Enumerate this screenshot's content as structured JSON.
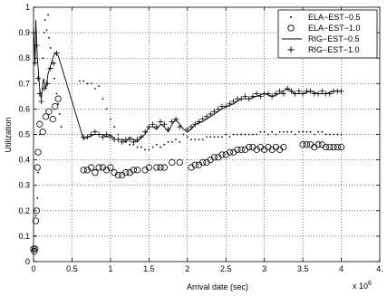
{
  "chart_data": {
    "type": "scatter",
    "xlabel": "Arrival date (sec)",
    "ylabel": "Utilization",
    "x_exponent_label": "x 10",
    "x_exponent_power": "6",
    "xlim": [
      0,
      4.5
    ],
    "ylim": [
      0,
      1
    ],
    "grid": true,
    "legend_position": "top-right",
    "x_ticks": [
      {
        "v": 0,
        "label": "0"
      },
      {
        "v": 0.5,
        "label": "0.5"
      },
      {
        "v": 1,
        "label": "1"
      },
      {
        "v": 1.5,
        "label": "1.5"
      },
      {
        "v": 2,
        "label": "2"
      },
      {
        "v": 2.5,
        "label": "2.5"
      },
      {
        "v": 3,
        "label": "3"
      },
      {
        "v": 3.5,
        "label": "3.5"
      },
      {
        "v": 4,
        "label": "4"
      },
      {
        "v": 4.5,
        "label": "4."
      }
    ],
    "y_ticks": [
      {
        "v": 0,
        "label": "0"
      },
      {
        "v": 0.1,
        "label": "0.1"
      },
      {
        "v": 0.2,
        "label": "0.2"
      },
      {
        "v": 0.3,
        "label": "0.3"
      },
      {
        "v": 0.4,
        "label": "0.4"
      },
      {
        "v": 0.5,
        "label": "0.5"
      },
      {
        "v": 0.6,
        "label": "0.6"
      },
      {
        "v": 0.7,
        "label": "0.7"
      },
      {
        "v": 0.8,
        "label": "0.8"
      },
      {
        "v": 0.9,
        "label": "0.9"
      },
      {
        "v": 1,
        "label": "1"
      }
    ],
    "series": [
      {
        "name": "ELA−EST−0.5",
        "marker": "dot",
        "points": [
          [
            0.01,
            0.05
          ],
          [
            0.02,
            0.1
          ],
          [
            0.03,
            0.18
          ],
          [
            0.05,
            0.25
          ],
          [
            0.06,
            0.35
          ],
          [
            0.08,
            0.5
          ],
          [
            0.1,
            0.65
          ],
          [
            0.12,
            0.8
          ],
          [
            0.14,
            0.9
          ],
          [
            0.15,
            0.95
          ],
          [
            0.17,
            0.91
          ],
          [
            0.19,
            0.97
          ],
          [
            0.2,
            0.88
          ],
          [
            0.22,
            0.84
          ],
          [
            0.25,
            0.78
          ],
          [
            0.27,
            0.72
          ],
          [
            0.3,
            0.66
          ],
          [
            0.32,
            0.62
          ],
          [
            0.34,
            0.58
          ],
          [
            0.36,
            0.53
          ],
          [
            0.6,
            0.71
          ],
          [
            0.65,
            0.71
          ],
          [
            0.7,
            0.7
          ],
          [
            0.75,
            0.7
          ],
          [
            0.8,
            0.68
          ],
          [
            0.85,
            0.69
          ],
          [
            0.9,
            0.64
          ],
          [
            0.95,
            0.6
          ],
          [
            1.0,
            0.56
          ],
          [
            1.05,
            0.53
          ],
          [
            1.1,
            0.5
          ],
          [
            1.15,
            0.48
          ],
          [
            1.2,
            0.47
          ],
          [
            1.25,
            0.46
          ],
          [
            1.3,
            0.46
          ],
          [
            1.35,
            0.45
          ],
          [
            1.4,
            0.45
          ],
          [
            1.45,
            0.44
          ],
          [
            1.5,
            0.44
          ],
          [
            1.55,
            0.45
          ],
          [
            1.6,
            0.46
          ],
          [
            1.65,
            0.45
          ],
          [
            1.7,
            0.46
          ],
          [
            1.75,
            0.47
          ],
          [
            1.8,
            0.47
          ],
          [
            1.85,
            0.48
          ],
          [
            1.9,
            0.47
          ],
          [
            1.95,
            0.5
          ],
          [
            2.0,
            0.49
          ],
          [
            2.05,
            0.48
          ],
          [
            2.1,
            0.48
          ],
          [
            2.15,
            0.48
          ],
          [
            2.2,
            0.48
          ],
          [
            2.25,
            0.49
          ],
          [
            2.3,
            0.49
          ],
          [
            2.35,
            0.49
          ],
          [
            2.4,
            0.49
          ],
          [
            2.45,
            0.49
          ],
          [
            2.5,
            0.5
          ],
          [
            2.55,
            0.49
          ],
          [
            2.6,
            0.5
          ],
          [
            2.65,
            0.5
          ],
          [
            2.7,
            0.5
          ],
          [
            2.75,
            0.5
          ],
          [
            2.8,
            0.5
          ],
          [
            2.85,
            0.5
          ],
          [
            2.9,
            0.5
          ],
          [
            2.95,
            0.51
          ],
          [
            3.0,
            0.51
          ],
          [
            3.05,
            0.5
          ],
          [
            3.1,
            0.51
          ],
          [
            3.15,
            0.5
          ],
          [
            3.2,
            0.51
          ],
          [
            3.25,
            0.51
          ],
          [
            3.3,
            0.51
          ],
          [
            3.35,
            0.51
          ],
          [
            3.4,
            0.5
          ],
          [
            3.45,
            0.51
          ],
          [
            3.5,
            0.51
          ],
          [
            3.55,
            0.51
          ],
          [
            3.6,
            0.51
          ],
          [
            3.65,
            0.5
          ],
          [
            3.7,
            0.51
          ],
          [
            3.75,
            0.51
          ],
          [
            3.8,
            0.5
          ],
          [
            3.85,
            0.5
          ],
          [
            3.9,
            0.5
          ],
          [
            3.95,
            0.5
          ],
          [
            4.0,
            0.5
          ]
        ]
      },
      {
        "name": "ELA−EST−1.0",
        "marker": "circle",
        "points": [
          [
            0.0,
            0.05
          ],
          [
            0.01,
            0.04
          ],
          [
            0.02,
            0.05
          ],
          [
            0.03,
            0.16
          ],
          [
            0.04,
            0.2
          ],
          [
            0.05,
            0.37
          ],
          [
            0.06,
            0.43
          ],
          [
            0.08,
            0.54
          ],
          [
            0.12,
            0.51
          ],
          [
            0.16,
            0.57
          ],
          [
            0.2,
            0.59
          ],
          [
            0.25,
            0.56
          ],
          [
            0.28,
            0.61
          ],
          [
            0.32,
            0.64
          ],
          [
            0.65,
            0.36
          ],
          [
            0.7,
            0.36
          ],
          [
            0.75,
            0.37
          ],
          [
            0.8,
            0.35
          ],
          [
            0.85,
            0.37
          ],
          [
            0.9,
            0.37
          ],
          [
            0.95,
            0.36
          ],
          [
            1.0,
            0.37
          ],
          [
            1.05,
            0.35
          ],
          [
            1.1,
            0.34
          ],
          [
            1.15,
            0.34
          ],
          [
            1.2,
            0.35
          ],
          [
            1.25,
            0.35
          ],
          [
            1.3,
            0.36
          ],
          [
            1.35,
            0.36
          ],
          [
            1.45,
            0.36
          ],
          [
            1.5,
            0.37
          ],
          [
            1.6,
            0.37
          ],
          [
            1.65,
            0.37
          ],
          [
            1.7,
            0.37
          ],
          [
            1.8,
            0.39
          ],
          [
            1.9,
            0.39
          ],
          [
            2.05,
            0.37
          ],
          [
            2.1,
            0.38
          ],
          [
            2.15,
            0.38
          ],
          [
            2.2,
            0.39
          ],
          [
            2.25,
            0.39
          ],
          [
            2.3,
            0.4
          ],
          [
            2.35,
            0.41
          ],
          [
            2.4,
            0.41
          ],
          [
            2.45,
            0.42
          ],
          [
            2.5,
            0.42
          ],
          [
            2.55,
            0.43
          ],
          [
            2.6,
            0.43
          ],
          [
            2.65,
            0.44
          ],
          [
            2.7,
            0.44
          ],
          [
            2.75,
            0.44
          ],
          [
            2.8,
            0.45
          ],
          [
            2.85,
            0.45
          ],
          [
            2.9,
            0.44
          ],
          [
            2.95,
            0.45
          ],
          [
            3.0,
            0.44
          ],
          [
            3.05,
            0.45
          ],
          [
            3.1,
            0.44
          ],
          [
            3.15,
            0.45
          ],
          [
            3.2,
            0.44
          ],
          [
            3.25,
            0.45
          ],
          [
            3.5,
            0.46
          ],
          [
            3.55,
            0.46
          ],
          [
            3.6,
            0.46
          ],
          [
            3.65,
            0.45
          ],
          [
            3.7,
            0.46
          ],
          [
            3.75,
            0.46
          ],
          [
            3.8,
            0.45
          ],
          [
            3.85,
            0.45
          ],
          [
            3.9,
            0.45
          ],
          [
            3.95,
            0.45
          ],
          [
            4.0,
            0.45
          ]
        ]
      },
      {
        "name": "RIG−EST−0.5",
        "marker": "line",
        "points": [
          [
            0.0,
            0.92
          ],
          [
            0.02,
            0.78
          ],
          [
            0.03,
            0.95
          ],
          [
            0.05,
            0.8
          ],
          [
            0.06,
            0.76
          ],
          [
            0.08,
            0.68
          ],
          [
            0.1,
            0.64
          ],
          [
            0.13,
            0.72
          ],
          [
            0.16,
            0.68
          ],
          [
            0.19,
            0.74
          ],
          [
            0.22,
            0.77
          ],
          [
            0.25,
            0.8
          ],
          [
            0.28,
            0.82
          ],
          [
            0.32,
            0.81
          ],
          [
            0.65,
            0.48
          ],
          [
            0.7,
            0.49
          ],
          [
            0.8,
            0.5
          ],
          [
            0.9,
            0.5
          ],
          [
            0.95,
            0.49
          ],
          [
            1.0,
            0.5
          ],
          [
            1.05,
            0.48
          ],
          [
            1.1,
            0.48
          ],
          [
            1.15,
            0.48
          ],
          [
            1.2,
            0.47
          ],
          [
            1.25,
            0.49
          ],
          [
            1.3,
            0.48
          ],
          [
            1.35,
            0.47
          ],
          [
            1.4,
            0.49
          ],
          [
            1.45,
            0.5
          ],
          [
            1.5,
            0.53
          ],
          [
            1.55,
            0.53
          ],
          [
            1.6,
            0.52
          ],
          [
            1.65,
            0.54
          ],
          [
            1.7,
            0.53
          ],
          [
            1.75,
            0.51
          ],
          [
            1.8,
            0.54
          ],
          [
            1.85,
            0.56
          ],
          [
            1.9,
            0.54
          ],
          [
            1.95,
            0.52
          ],
          [
            2.0,
            0.51
          ],
          [
            2.05,
            0.52
          ],
          [
            2.1,
            0.54
          ],
          [
            2.2,
            0.55
          ],
          [
            2.3,
            0.57
          ],
          [
            2.4,
            0.59
          ],
          [
            2.5,
            0.61
          ],
          [
            2.6,
            0.62
          ],
          [
            2.7,
            0.64
          ],
          [
            2.8,
            0.64
          ],
          [
            2.9,
            0.65
          ],
          [
            3.0,
            0.66
          ],
          [
            3.1,
            0.65
          ],
          [
            3.2,
            0.66
          ],
          [
            3.3,
            0.68
          ],
          [
            3.4,
            0.66
          ],
          [
            3.5,
            0.66
          ],
          [
            3.6,
            0.67
          ],
          [
            3.7,
            0.66
          ],
          [
            3.8,
            0.66
          ],
          [
            3.9,
            0.67
          ],
          [
            4.0,
            0.67
          ]
        ]
      },
      {
        "name": "RIG−EST−1.0",
        "marker": "plus",
        "points": [
          [
            0.0,
            0.9
          ],
          [
            0.02,
            0.78
          ],
          [
            0.04,
            0.85
          ],
          [
            0.06,
            0.72
          ],
          [
            0.08,
            0.66
          ],
          [
            0.1,
            0.63
          ],
          [
            0.14,
            0.68
          ],
          [
            0.18,
            0.7
          ],
          [
            0.22,
            0.76
          ],
          [
            0.26,
            0.78
          ],
          [
            0.3,
            0.82
          ],
          [
            0.65,
            0.49
          ],
          [
            0.7,
            0.49
          ],
          [
            0.75,
            0.5
          ],
          [
            0.8,
            0.51
          ],
          [
            0.85,
            0.5
          ],
          [
            0.9,
            0.49
          ],
          [
            0.95,
            0.5
          ],
          [
            1.0,
            0.49
          ],
          [
            1.05,
            0.48
          ],
          [
            1.1,
            0.48
          ],
          [
            1.15,
            0.47
          ],
          [
            1.2,
            0.48
          ],
          [
            1.25,
            0.48
          ],
          [
            1.3,
            0.47
          ],
          [
            1.35,
            0.48
          ],
          [
            1.4,
            0.49
          ],
          [
            1.45,
            0.51
          ],
          [
            1.5,
            0.53
          ],
          [
            1.55,
            0.54
          ],
          [
            1.6,
            0.53
          ],
          [
            1.65,
            0.55
          ],
          [
            1.7,
            0.54
          ],
          [
            1.75,
            0.52
          ],
          [
            1.8,
            0.55
          ],
          [
            1.85,
            0.56
          ],
          [
            1.9,
            0.53
          ],
          [
            2.0,
            0.52
          ],
          [
            2.05,
            0.53
          ],
          [
            2.1,
            0.54
          ],
          [
            2.15,
            0.55
          ],
          [
            2.2,
            0.56
          ],
          [
            2.25,
            0.57
          ],
          [
            2.3,
            0.58
          ],
          [
            2.35,
            0.59
          ],
          [
            2.4,
            0.6
          ],
          [
            2.45,
            0.61
          ],
          [
            2.5,
            0.61
          ],
          [
            2.55,
            0.62
          ],
          [
            2.6,
            0.63
          ],
          [
            2.65,
            0.64
          ],
          [
            2.7,
            0.64
          ],
          [
            2.75,
            0.65
          ],
          [
            2.8,
            0.64
          ],
          [
            2.85,
            0.65
          ],
          [
            2.9,
            0.66
          ],
          [
            2.95,
            0.65
          ],
          [
            3.0,
            0.66
          ],
          [
            3.05,
            0.66
          ],
          [
            3.1,
            0.65
          ],
          [
            3.15,
            0.66
          ],
          [
            3.2,
            0.67
          ],
          [
            3.25,
            0.66
          ],
          [
            3.3,
            0.68
          ],
          [
            3.35,
            0.67
          ],
          [
            3.4,
            0.66
          ],
          [
            3.45,
            0.67
          ],
          [
            3.5,
            0.66
          ],
          [
            3.55,
            0.67
          ],
          [
            3.6,
            0.67
          ],
          [
            3.65,
            0.66
          ],
          [
            3.7,
            0.66
          ],
          [
            3.75,
            0.67
          ],
          [
            3.8,
            0.66
          ],
          [
            3.85,
            0.66
          ],
          [
            3.9,
            0.67
          ],
          [
            3.95,
            0.67
          ],
          [
            4.0,
            0.67
          ]
        ]
      }
    ]
  }
}
